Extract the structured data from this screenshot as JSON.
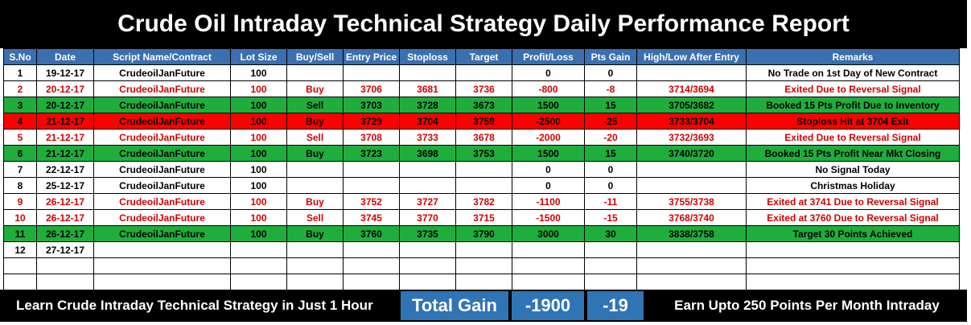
{
  "title": "Crude Oil Intraday Technical Strategy Daily Performance Report",
  "columns": [
    "S.No",
    "Date",
    "Script Name/Contract",
    "Lot Size",
    "Buy/Sell",
    "Entry Price",
    "Stoploss",
    "Target",
    "Profit/Loss",
    "Pts Gain",
    "High/Low After Entry",
    "Remarks"
  ],
  "rows": [
    {
      "style": "black",
      "cells": [
        "1",
        "19-12-17",
        "CrudeoilJanFuture",
        "100",
        "",
        "",
        "",
        "",
        "0",
        "0",
        "",
        "No Trade on 1st Day of New Contract"
      ]
    },
    {
      "style": "red",
      "cells": [
        "2",
        "20-12-17",
        "CrudeoilJanFuture",
        "100",
        "Buy",
        "3706",
        "3681",
        "3736",
        "-800",
        "-8",
        "3714/3694",
        "Exited Due to Reversal Signal"
      ]
    },
    {
      "style": "green",
      "cells": [
        "3",
        "20-12-17",
        "CrudeoilJanFuture",
        "100",
        "Sell",
        "3703",
        "3728",
        "3673",
        "1500",
        "15",
        "3705/3682",
        "Booked 15 Pts Profit Due to Inventory"
      ]
    },
    {
      "style": "redfill",
      "cells": [
        "4",
        "21-12-17",
        "CrudeoilJanFuture",
        "100",
        "Buy",
        "3729",
        "3704",
        "3759",
        "-2500",
        "-25",
        "3733/3704",
        "Stoploss Hit at 3704 Exit"
      ]
    },
    {
      "style": "red",
      "cells": [
        "5",
        "21-12-17",
        "CrudeoilJanFuture",
        "100",
        "Sell",
        "3708",
        "3733",
        "3678",
        "-2000",
        "-20",
        "3732/3693",
        "Exited Due to Reversal Signal"
      ]
    },
    {
      "style": "green",
      "cells": [
        "6",
        "21-12-17",
        "CrudeoilJanFuture",
        "100",
        "Buy",
        "3723",
        "3698",
        "3753",
        "1500",
        "15",
        "3740/3720",
        "Booked 15 Pts Profit Near Mkt Closing"
      ]
    },
    {
      "style": "black",
      "cells": [
        "7",
        "22-12-17",
        "CrudeoilJanFuture",
        "100",
        "",
        "",
        "",
        "",
        "0",
        "0",
        "",
        "No Signal Today"
      ]
    },
    {
      "style": "black",
      "cells": [
        "8",
        "25-12-17",
        "CrudeoilJanFuture",
        "100",
        "",
        "",
        "",
        "",
        "0",
        "0",
        "",
        "Christmas Holiday"
      ]
    },
    {
      "style": "red",
      "cells": [
        "9",
        "26-12-17",
        "CrudeoilJanFuture",
        "100",
        "Buy",
        "3752",
        "3727",
        "3782",
        "-1100",
        "-11",
        "3755/3738",
        "Exited at 3741 Due to Reversal Signal"
      ]
    },
    {
      "style": "red",
      "cells": [
        "10",
        "26-12-17",
        "CrudeoilJanFuture",
        "100",
        "Sell",
        "3745",
        "3770",
        "3715",
        "-1500",
        "-15",
        "3768/3740",
        "Exited at 3760 Due to Reversal Signal"
      ]
    },
    {
      "style": "green",
      "cells": [
        "11",
        "26-12-17",
        "CrudeoilJanFuture",
        "100",
        "Buy",
        "3760",
        "3735",
        "3790",
        "3000",
        "30",
        "3838/3758",
        "Target 30 Points Achieved"
      ]
    },
    {
      "style": "black",
      "cells": [
        "12",
        "27-12-17",
        "",
        "",
        "",
        "",
        "",
        "",
        "",
        "",
        "",
        ""
      ]
    },
    {
      "style": "empty",
      "cells": [
        "",
        "",
        "",
        "",
        "",
        "",
        "",
        "",
        "",
        "",
        "",
        ""
      ]
    },
    {
      "style": "empty",
      "cells": [
        "",
        "",
        "",
        "",
        "",
        "",
        "",
        "",
        "",
        "",
        "",
        ""
      ]
    }
  ],
  "footer": {
    "left_text": "Learn Crude Intraday Technical Strategy in Just 1 Hour",
    "total_label": "Total Gain",
    "total_profit": "-1900",
    "total_points": "-19",
    "right_text": "Earn Upto 250 Points Per Month Intraday"
  }
}
